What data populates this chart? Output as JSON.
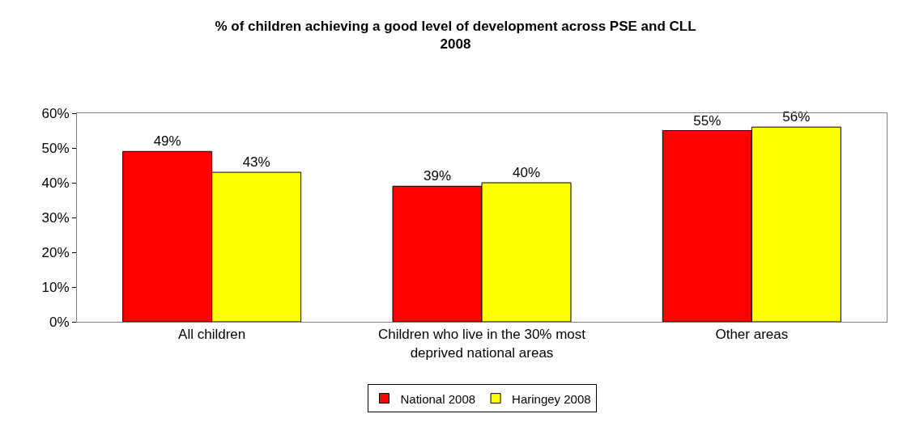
{
  "chart_data": {
    "type": "bar",
    "title": "% of children achieving a good level of development across PSE and CLL\n2008",
    "categories": [
      "All children",
      "Children who live in the 30% most deprived national areas",
      "Other areas"
    ],
    "series": [
      {
        "name": "National 2008",
        "color": "#ff0000",
        "values": [
          49,
          39,
          55
        ],
        "value_labels": [
          "49%",
          "39%",
          "55%"
        ]
      },
      {
        "name": "Haringey 2008",
        "color": "#ffff00",
        "values": [
          43,
          40,
          56
        ],
        "value_labels": [
          "43%",
          "40%",
          "56%"
        ]
      }
    ],
    "ylim": [
      0,
      60
    ],
    "yticks": [
      {
        "value": 0,
        "label": "0%"
      },
      {
        "value": 10,
        "label": "10%"
      },
      {
        "value": 20,
        "label": "20%"
      },
      {
        "value": 30,
        "label": "30%"
      },
      {
        "value": 40,
        "label": "40%"
      },
      {
        "value": 50,
        "label": "50%"
      },
      {
        "value": 60,
        "label": "60%"
      }
    ],
    "legend": "bottom"
  }
}
